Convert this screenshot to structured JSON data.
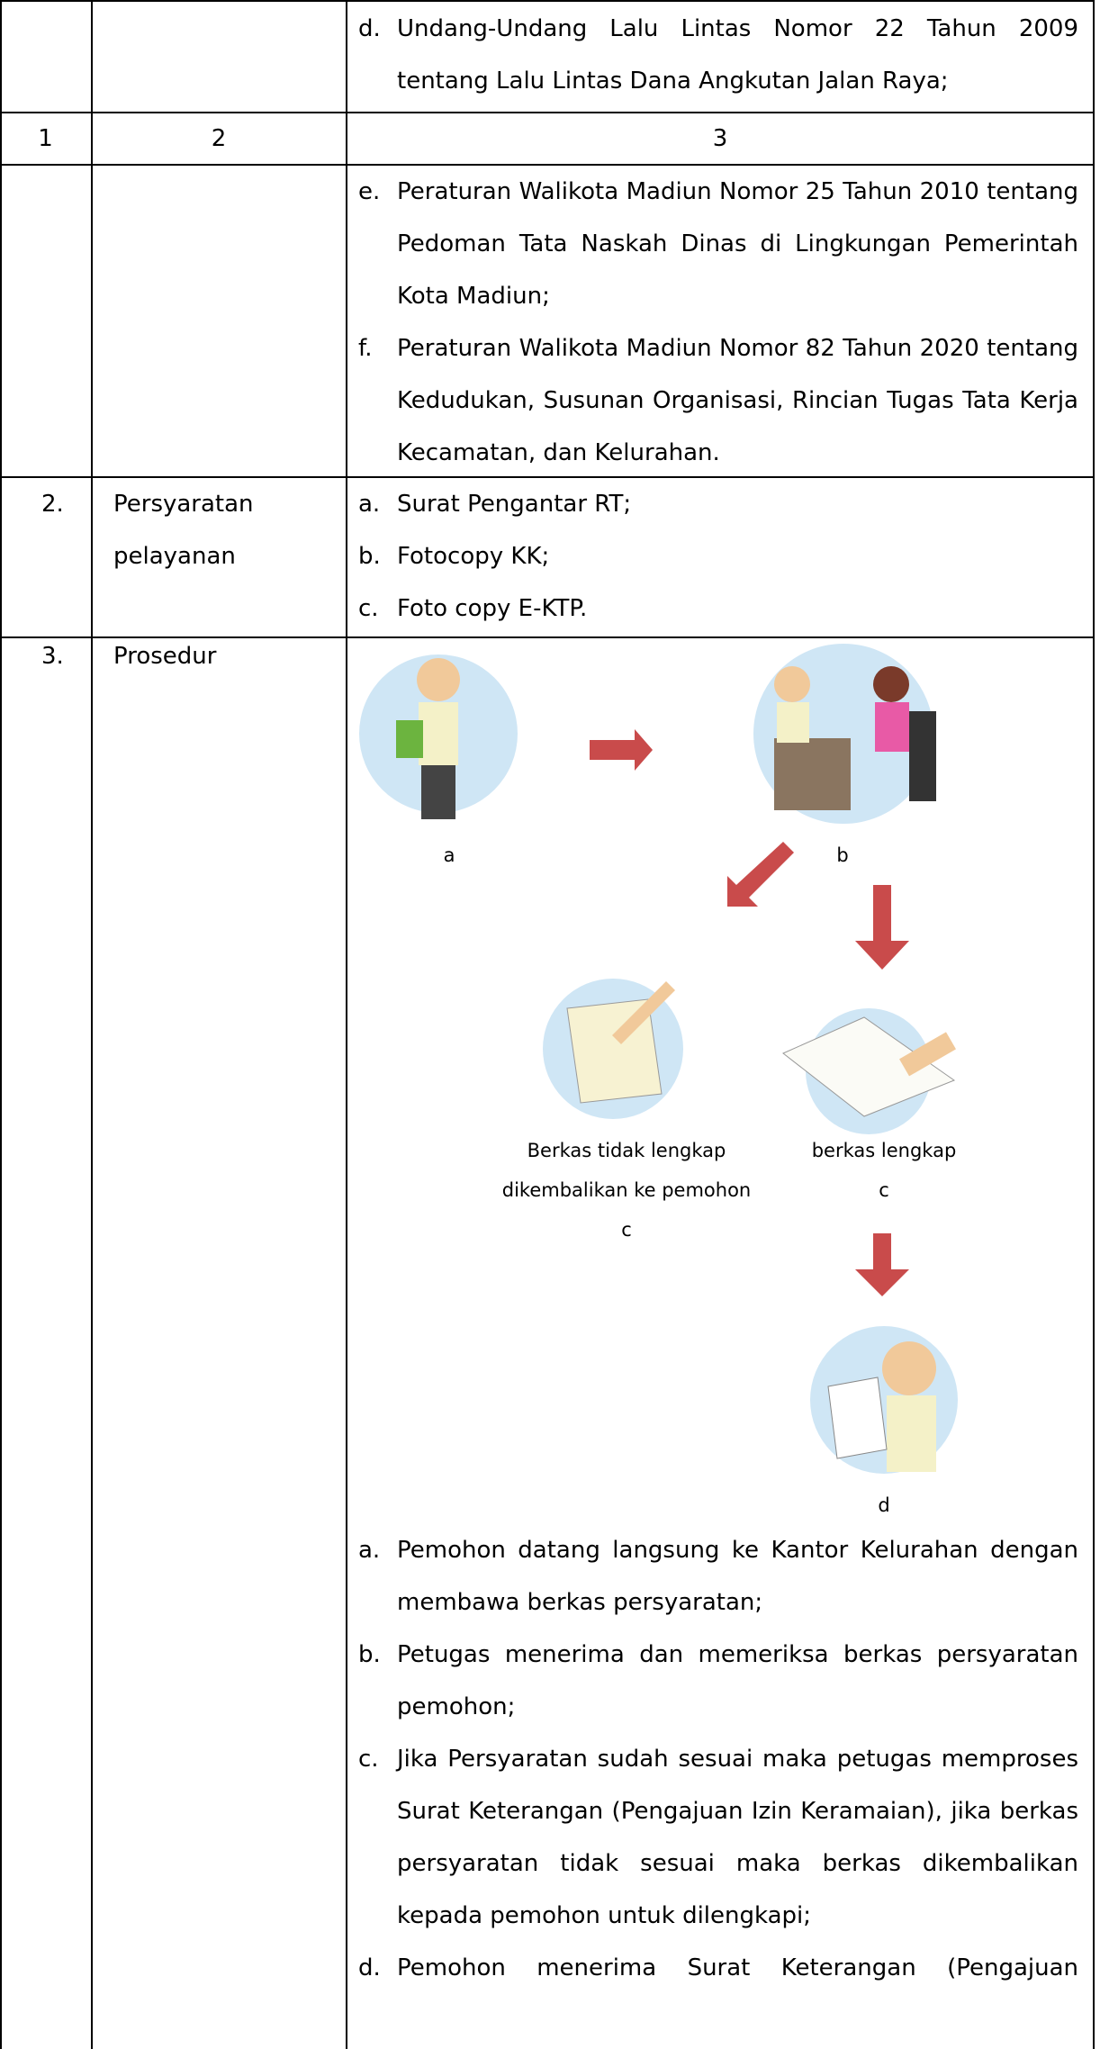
{
  "continued_top": {
    "items": [
      {
        "marker": "d.",
        "text": "Undang-Undang Lalu Lintas Nomor 22 Tahun 2009 tentang Lalu Lintas Dana Angkutan Jalan Raya;"
      }
    ]
  },
  "header": [
    "1",
    "2",
    "3"
  ],
  "continued": {
    "items": [
      {
        "marker": "e.",
        "text": "Peraturan Walikota Madiun Nomor 25 Tahun 2010 tentang Pedoman Tata Naskah Dinas di Lingkungan Pemerintah Kota Madiun;"
      },
      {
        "marker": "f.",
        "text": "Peraturan Walikota Madiun Nomor 82 Tahun 2020 tentang Kedudukan, Susunan Organisasi, Rincian Tugas Tata Kerja Kecamatan, dan Kelurahan."
      }
    ]
  },
  "rows": [
    {
      "number": "2.",
      "label": "Persyaratan pelayanan",
      "items": [
        {
          "marker": "a.",
          "text": "Surat Pengantar RT;"
        },
        {
          "marker": "b.",
          "text": "Fotocopy KK;"
        },
        {
          "marker": "c.",
          "text": "Foto copy E-KTP."
        }
      ]
    },
    {
      "number": "3.",
      "label": "Prosedur",
      "diagram": {
        "captions": [
          "a",
          "b",
          "Berkas tidak lengkap",
          "dikembalikan ke pemohon",
          "c",
          "berkas lengkap",
          "c",
          "d"
        ]
      },
      "items": [
        {
          "marker": "a.",
          "text": "Pemohon datang langsung ke Kantor Kelurahan dengan membawa berkas persyaratan;"
        },
        {
          "marker": "b.",
          "text": "Petugas menerima dan memeriksa berkas persyaratan pemohon;"
        },
        {
          "marker": "c.",
          "text": "Jika Persyaratan sudah sesuai maka petugas memproses Surat Keterangan (Pengajuan Izin Keramaian), jika berkas persyaratan tidak sesuai maka berkas dikembalikan kepada pemohon untuk dilengkapi;"
        },
        {
          "marker": "d.",
          "text": "Pemohon menerima Surat Keterangan (Pengajuan"
        }
      ]
    }
  ]
}
